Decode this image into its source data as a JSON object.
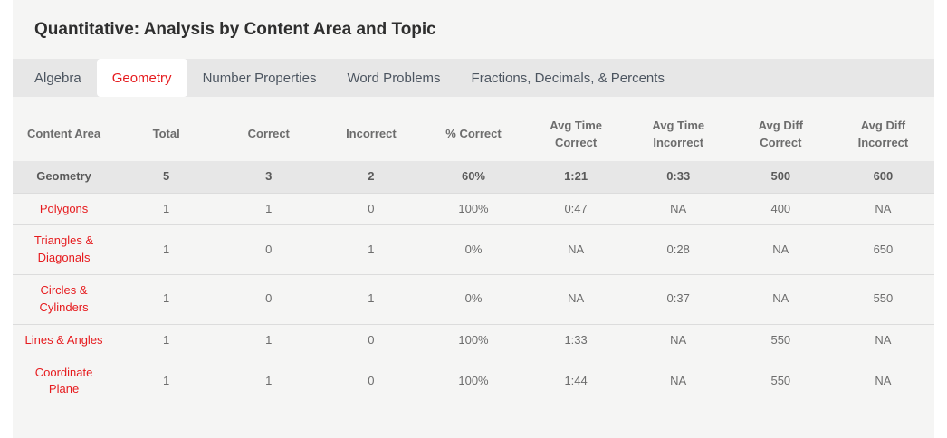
{
  "page": {
    "title": "Quantitative: Analysis by Content Area and Topic"
  },
  "tabs": [
    {
      "label": "Algebra",
      "active": false
    },
    {
      "label": "Geometry",
      "active": true
    },
    {
      "label": "Number Properties",
      "active": false
    },
    {
      "label": "Word Problems",
      "active": false
    },
    {
      "label": "Fractions, Decimals, & Percents",
      "active": false
    }
  ],
  "table": {
    "columns": [
      "Content Area",
      "Total",
      "Correct",
      "Incorrect",
      "% Correct",
      "Avg Time Correct",
      "Avg Time Incorrect",
      "Avg Diff Correct",
      "Avg Diff Incorrect"
    ],
    "summary_row": {
      "content_area": "Geometry",
      "values": [
        "5",
        "3",
        "2",
        "60%",
        "1:21",
        "0:33",
        "500",
        "600"
      ]
    },
    "rows": [
      {
        "content_area": "Polygons",
        "values": [
          "1",
          "1",
          "0",
          "100%",
          "0:47",
          "NA",
          "400",
          "NA"
        ]
      },
      {
        "content_area": "Triangles & Diagonals",
        "values": [
          "1",
          "0",
          "1",
          "0%",
          "NA",
          "0:28",
          "NA",
          "650"
        ]
      },
      {
        "content_area": "Circles & Cylinders",
        "values": [
          "1",
          "0",
          "1",
          "0%",
          "NA",
          "0:37",
          "NA",
          "550"
        ]
      },
      {
        "content_area": "Lines & Angles",
        "values": [
          "1",
          "1",
          "0",
          "100%",
          "1:33",
          "NA",
          "550",
          "NA"
        ]
      },
      {
        "content_area": "Coordinate Plane",
        "values": [
          "1",
          "1",
          "0",
          "100%",
          "1:44",
          "NA",
          "550",
          "NA"
        ]
      }
    ]
  },
  "colors": {
    "accent_red": "#e61b1e",
    "panel_background": "#f5f5f4",
    "tab_bar_background": "#e7e7e7",
    "summary_row_background": "#e7e7e7",
    "title_text": "#2e2e2e",
    "tab_text": "#4c5560",
    "table_text": "#6d6d6d",
    "row_divider": "#dcdcdc"
  }
}
